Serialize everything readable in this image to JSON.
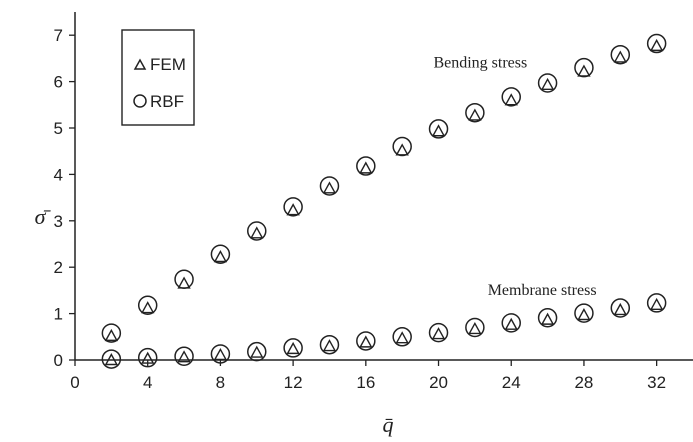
{
  "chart_data": {
    "type": "scatter",
    "xlabel": "q̄",
    "ylabel": "σ̄",
    "xlim": [
      0,
      34
    ],
    "ylim": [
      0,
      7.5
    ],
    "xticks": [
      0,
      4,
      8,
      12,
      16,
      20,
      24,
      28,
      32
    ],
    "yticks": [
      0,
      1,
      2,
      3,
      4,
      5,
      6,
      7
    ],
    "grid": false,
    "legend_position": "top-left",
    "legend": [
      {
        "marker": "triangle",
        "label": "FEM"
      },
      {
        "marker": "circle",
        "label": "RBF"
      }
    ],
    "annotations": [
      {
        "text": "Bending stress",
        "x": 22.3,
        "y": 6.3
      },
      {
        "text": "Membrane stress",
        "x": 25.7,
        "y": 1.4
      }
    ],
    "x": [
      2,
      4,
      6,
      8,
      10,
      12,
      14,
      16,
      18,
      20,
      22,
      24,
      26,
      28,
      30,
      32
    ],
    "series": [
      {
        "name": "Bending stress (FEM)",
        "group": "bending",
        "marker": "triangle",
        "values": [
          0.52,
          1.12,
          1.65,
          2.22,
          2.73,
          3.23,
          3.7,
          4.13,
          4.52,
          4.93,
          5.27,
          5.6,
          5.93,
          6.22,
          6.52,
          6.77
        ]
      },
      {
        "name": "Bending stress (RBF)",
        "group": "bending",
        "marker": "circle",
        "values": [
          0.58,
          1.18,
          1.74,
          2.28,
          2.78,
          3.3,
          3.75,
          4.18,
          4.6,
          4.98,
          5.33,
          5.67,
          5.97,
          6.3,
          6.58,
          6.82
        ]
      },
      {
        "name": "Membrane stress (FEM)",
        "group": "membrane",
        "marker": "triangle",
        "values": [
          0.0,
          0.03,
          0.06,
          0.11,
          0.16,
          0.24,
          0.3,
          0.38,
          0.47,
          0.56,
          0.67,
          0.76,
          0.87,
          0.97,
          1.08,
          1.19
        ]
      },
      {
        "name": "Membrane stress (RBF)",
        "group": "membrane",
        "marker": "circle",
        "values": [
          0.02,
          0.05,
          0.08,
          0.13,
          0.18,
          0.26,
          0.33,
          0.41,
          0.5,
          0.59,
          0.7,
          0.8,
          0.91,
          1.01,
          1.12,
          1.23
        ]
      }
    ]
  }
}
